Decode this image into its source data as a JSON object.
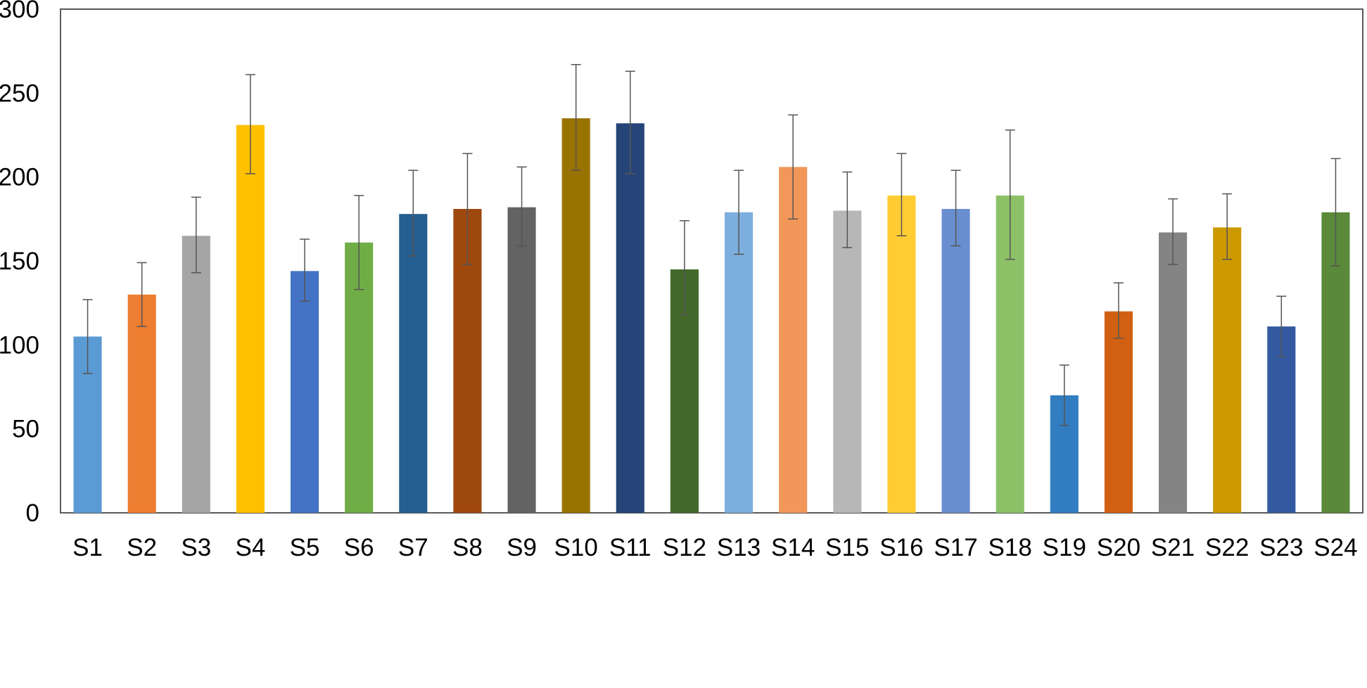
{
  "chart_data": {
    "type": "bar",
    "title": "",
    "xlabel": "",
    "ylabel": "",
    "ylim": [
      0,
      300
    ],
    "yticks": [
      0,
      50,
      100,
      150,
      200,
      250,
      300
    ],
    "grid": false,
    "legend": "none",
    "categories": [
      "S1",
      "S2",
      "S3",
      "S4",
      "S5",
      "S6",
      "S7",
      "S8",
      "S9",
      "S10",
      "S11",
      "S12",
      "S13",
      "S14",
      "S15",
      "S16",
      "S17",
      "S18",
      "S19",
      "S20",
      "S21",
      "S22",
      "S23",
      "S24"
    ],
    "values": [
      105,
      130,
      165,
      231,
      144,
      161,
      178,
      181,
      182,
      235,
      232,
      145,
      179,
      206,
      180,
      189,
      181,
      189,
      70,
      120,
      167,
      170,
      111,
      179
    ],
    "error_low": [
      83,
      111,
      143,
      202,
      126,
      133,
      153,
      148,
      159,
      204,
      202,
      118,
      154,
      175,
      158,
      165,
      159,
      151,
      52,
      104,
      148,
      151,
      93,
      147
    ],
    "error_high": [
      127,
      149,
      188,
      261,
      163,
      189,
      204,
      214,
      206,
      267,
      263,
      174,
      204,
      237,
      203,
      214,
      204,
      228,
      88,
      137,
      187,
      190,
      129,
      211
    ],
    "colors": [
      "#5B9BD5",
      "#ED7D31",
      "#A5A5A5",
      "#FFC000",
      "#4472C4",
      "#70AD47",
      "#255E91",
      "#9E480E",
      "#636363",
      "#997300",
      "#264478",
      "#43682B",
      "#7CAFDD",
      "#F1975A",
      "#B7B7B7",
      "#FFCD33",
      "#698ED0",
      "#8CC168",
      "#327DC2",
      "#D26012",
      "#848484",
      "#CC9A00",
      "#335AA1",
      "#5A8A39"
    ],
    "error_color": "#555555",
    "frame_color": "#5A5A5A"
  }
}
